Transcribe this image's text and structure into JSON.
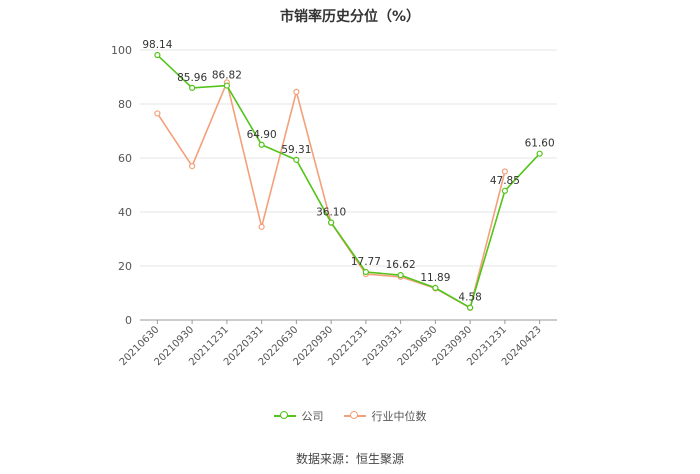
{
  "title": "市销率历史分位（%）",
  "source": "数据来源：恒生聚源",
  "colors": {
    "company": "#52c41a",
    "industry": "#f4a07a",
    "grid": "#e6e6e6",
    "axis": "#999999"
  },
  "chart_data": {
    "type": "line",
    "title": "市销率历史分位（%）",
    "categories": [
      "20210630",
      "20210930",
      "20211231",
      "20220331",
      "20220630",
      "20220930",
      "20221231",
      "20230331",
      "20230630",
      "20230930",
      "20231231",
      "20240423"
    ],
    "ylim": [
      0,
      100
    ],
    "yticks": [
      0,
      20,
      40,
      60,
      80,
      100
    ],
    "grid": true,
    "legend_position": "bottom",
    "series": [
      {
        "name": "公司",
        "values": [
          98.14,
          85.96,
          86.82,
          64.9,
          59.31,
          36.1,
          17.77,
          16.62,
          11.89,
          4.58,
          47.85,
          61.6
        ],
        "labels": [
          "98.14",
          "85.96",
          "86.82",
          "64.90",
          "59.31",
          "36.10",
          "17.77",
          "16.62",
          "11.89",
          "4.58",
          "47.85",
          "61.60"
        ]
      },
      {
        "name": "行业中位数",
        "values": [
          76.5,
          57.0,
          88.0,
          34.5,
          84.5,
          36.0,
          17.0,
          16.0,
          11.7,
          4.5,
          55.0,
          null
        ]
      }
    ]
  }
}
